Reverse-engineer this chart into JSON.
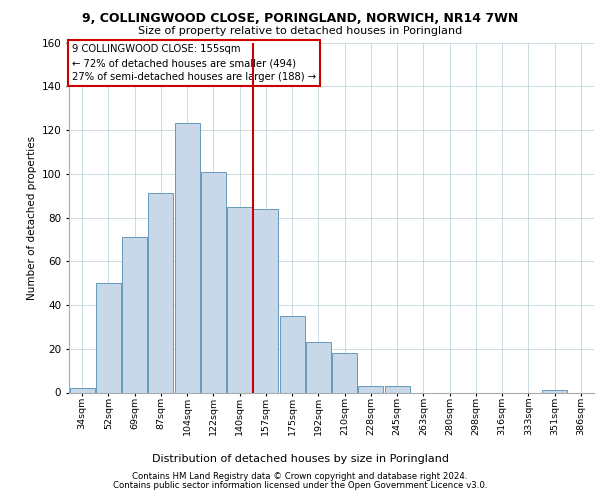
{
  "title_line1": "9, COLLINGWOOD CLOSE, PORINGLAND, NORWICH, NR14 7WN",
  "title_line2": "Size of property relative to detached houses in Poringland",
  "xlabel": "Distribution of detached houses by size in Poringland",
  "ylabel": "Number of detached properties",
  "bar_values": [
    2,
    50,
    71,
    91,
    123,
    101,
    85,
    84,
    35,
    23,
    18,
    3,
    3,
    0,
    0,
    0,
    0,
    0,
    1,
    0
  ],
  "bar_labels": [
    "34sqm",
    "52sqm",
    "69sqm",
    "87sqm",
    "104sqm",
    "122sqm",
    "140sqm",
    "157sqm",
    "175sqm",
    "192sqm",
    "210sqm",
    "228sqm",
    "245sqm",
    "263sqm",
    "280sqm",
    "298sqm",
    "316sqm",
    "333sqm",
    "351sqm",
    "386sqm"
  ],
  "bar_color": "#c8d8e8",
  "bar_edge_color": "#6699bb",
  "vline_color": "#cc0000",
  "vline_pos": 6.5,
  "box_edge_color": "#cc0000",
  "annotation_text_line1": "9 COLLINGWOOD CLOSE: 155sqm",
  "annotation_text_line2": "← 72% of detached houses are smaller (494)",
  "annotation_text_line3": "27% of semi-detached houses are larger (188) →",
  "ylim": [
    0,
    160
  ],
  "yticks": [
    0,
    20,
    40,
    60,
    80,
    100,
    120,
    140,
    160
  ],
  "grid_color": "#b8ccd8",
  "background_color": "#ffffff",
  "footer_line1": "Contains HM Land Registry data © Crown copyright and database right 2024.",
  "footer_line2": "Contains public sector information licensed under the Open Government Licence v3.0."
}
